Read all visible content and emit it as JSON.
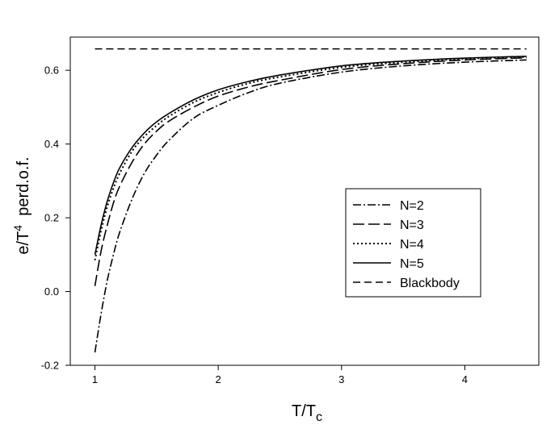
{
  "chart_data": {
    "type": "line",
    "title": "",
    "xlabel": {
      "main": "T/T",
      "sub": "c"
    },
    "ylabel": {
      "main": "e/T",
      "sup": "4",
      "rest": "  perd.o.f."
    },
    "xlim": [
      0.8,
      4.6
    ],
    "ylim": [
      -0.2,
      0.69
    ],
    "x_ticks": [
      1,
      2,
      3,
      4
    ],
    "x_tick_labels": [
      "1",
      "2",
      "3",
      "4"
    ],
    "y_ticks": [
      -0.2,
      0.0,
      0.2,
      0.4,
      0.6
    ],
    "y_tick_labels": [
      "-0.2",
      "0.0",
      "0.2",
      "0.4",
      "0.6"
    ],
    "grid": false,
    "legend_position": "center-right",
    "series": [
      {
        "name": "N=2",
        "style": "dashdot",
        "color": "#000000",
        "x": [
          1.0,
          1.05,
          1.1,
          1.15,
          1.2,
          1.3,
          1.4,
          1.5,
          1.6,
          1.8,
          2.0,
          2.25,
          2.5,
          3.0,
          3.5,
          4.0,
          4.5
        ],
        "y": [
          -0.165,
          -0.06,
          0.03,
          0.1,
          0.16,
          0.25,
          0.32,
          0.37,
          0.41,
          0.47,
          0.505,
          0.54,
          0.565,
          0.595,
          0.612,
          0.622,
          0.628
        ]
      },
      {
        "name": "N=3",
        "style": "dashed",
        "color": "#000000",
        "x": [
          1.0,
          1.05,
          1.1,
          1.15,
          1.2,
          1.3,
          1.4,
          1.5,
          1.6,
          1.8,
          2.0,
          2.25,
          2.5,
          3.0,
          3.5,
          4.0,
          4.5
        ],
        "y": [
          0.015,
          0.11,
          0.18,
          0.24,
          0.285,
          0.35,
          0.4,
          0.435,
          0.462,
          0.5,
          0.53,
          0.555,
          0.573,
          0.602,
          0.618,
          0.628,
          0.634
        ]
      },
      {
        "name": "N=4",
        "style": "dotted",
        "color": "#000000",
        "x": [
          1.0,
          1.05,
          1.1,
          1.15,
          1.2,
          1.3,
          1.4,
          1.5,
          1.6,
          1.8,
          2.0,
          2.25,
          2.5,
          3.0,
          3.5,
          4.0,
          4.5
        ],
        "y": [
          0.085,
          0.165,
          0.23,
          0.28,
          0.32,
          0.38,
          0.42,
          0.45,
          0.475,
          0.513,
          0.54,
          0.565,
          0.582,
          0.608,
          0.622,
          0.631,
          0.636
        ]
      },
      {
        "name": "N=5",
        "style": "solid",
        "color": "#000000",
        "x": [
          1.0,
          1.05,
          1.1,
          1.15,
          1.2,
          1.3,
          1.4,
          1.5,
          1.6,
          1.8,
          2.0,
          2.25,
          2.5,
          3.0,
          3.5,
          4.0,
          4.5
        ],
        "y": [
          0.1,
          0.18,
          0.245,
          0.295,
          0.335,
          0.39,
          0.43,
          0.46,
          0.483,
          0.52,
          0.547,
          0.57,
          0.587,
          0.612,
          0.625,
          0.633,
          0.638
        ]
      },
      {
        "name": "Blackbody",
        "style": "longdash",
        "color": "#000000",
        "x": [
          1.0,
          4.5
        ],
        "y": [
          0.658,
          0.658
        ]
      }
    ]
  }
}
